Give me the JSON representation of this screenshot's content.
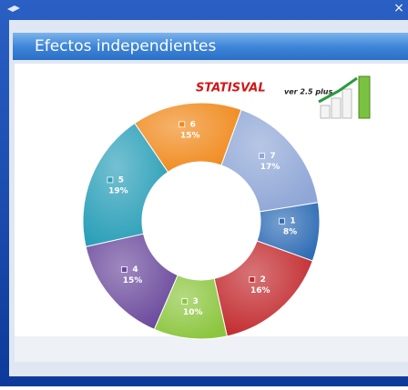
{
  "window": {
    "header": "Efectos independientes",
    "logo": "STATISVAL",
    "logo_version": "ver 2.5 plus"
  },
  "chart_data": {
    "type": "donut",
    "categories": [
      "1",
      "2",
      "3",
      "4",
      "5",
      "6",
      "7"
    ],
    "values": [
      8,
      16,
      10,
      15,
      19,
      15,
      17
    ],
    "value_labels": [
      "8%",
      "16%",
      "10%",
      "15%",
      "19%",
      "15%",
      "17%"
    ],
    "colors": [
      "#2f6db5",
      "#c22a2e",
      "#8cc63f",
      "#6b4a9c",
      "#2a9fb8",
      "#f08a1d",
      "#8fa7d6"
    ]
  }
}
